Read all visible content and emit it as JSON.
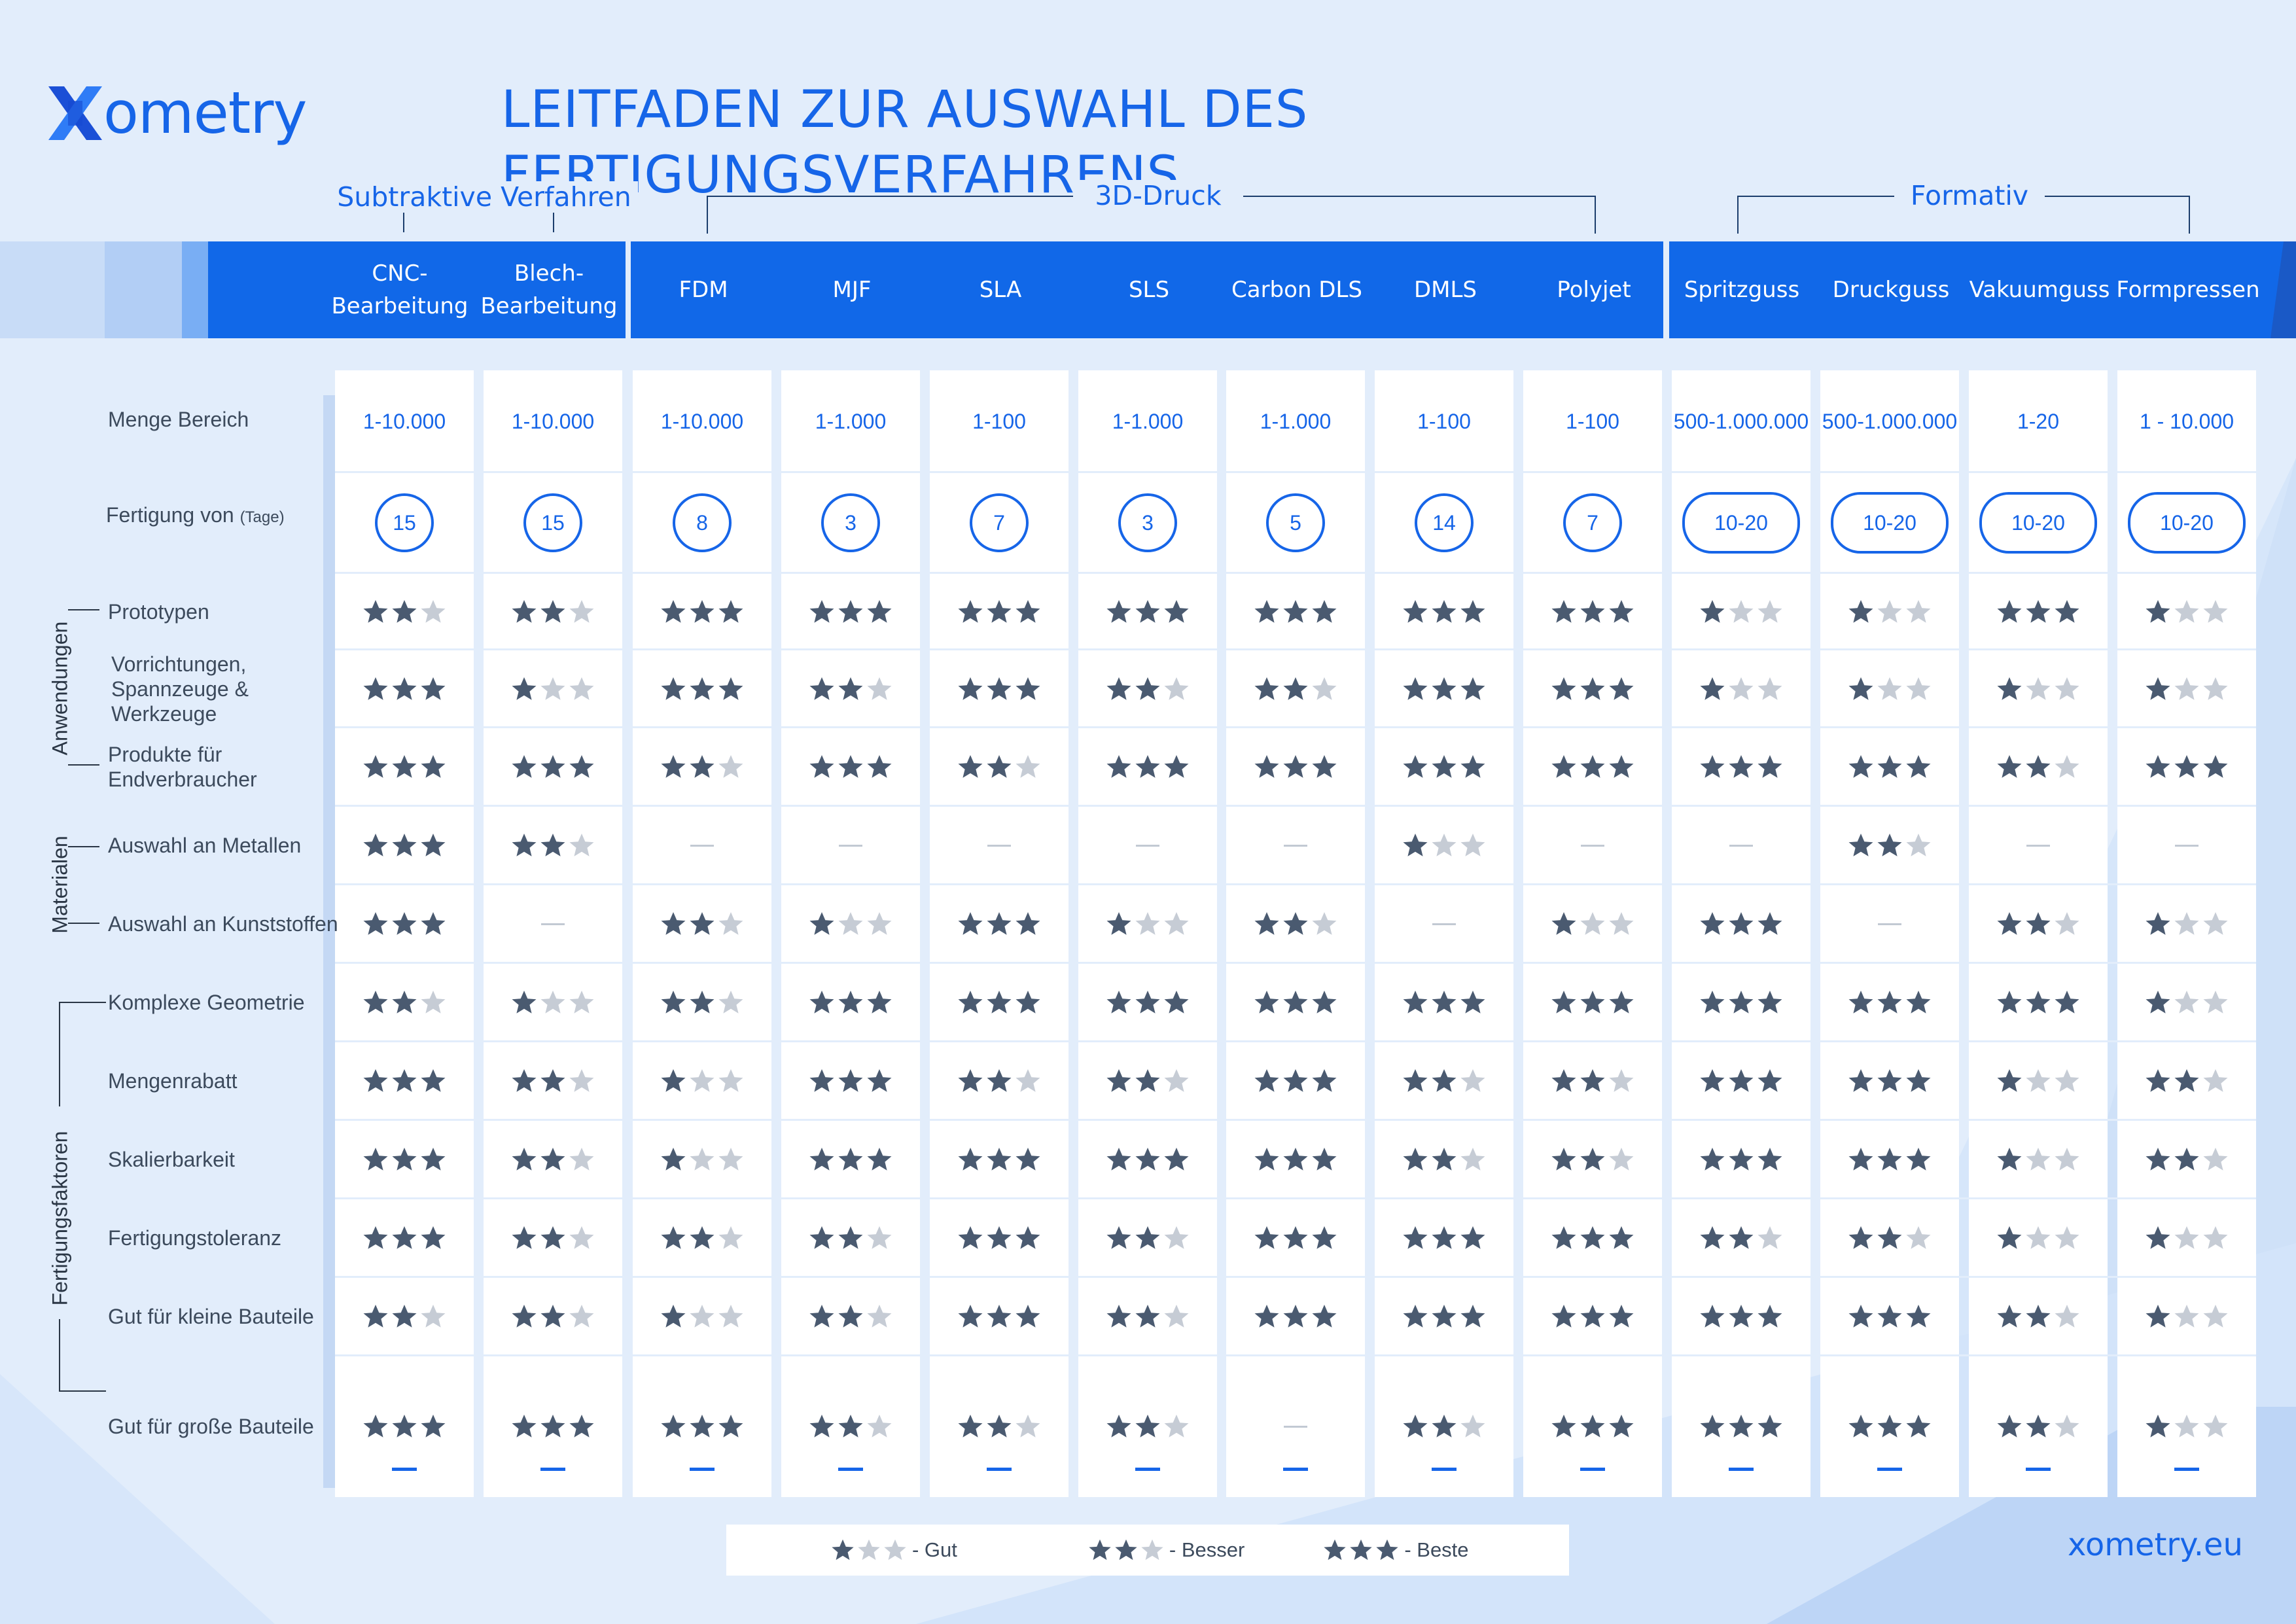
{
  "brand": {
    "logo_text": "ometry",
    "website": "xometry.eu",
    "primary_color": "#1665e8",
    "band_color": "#1168e8",
    "star_color": "#4a5a70",
    "star_empty_color": "#c6ccd5"
  },
  "title": "LEITFADEN ZUR AUSWAHL DES FERTIGUNGSVERFAHRENS",
  "groups": [
    {
      "label": "Subtraktive Verfahren",
      "span": [
        0,
        1
      ]
    },
    {
      "label": "3D-Druck",
      "span": [
        2,
        8
      ]
    },
    {
      "label": "Formativ",
      "span": [
        9,
        12
      ]
    }
  ],
  "processes": [
    {
      "name": "CNC-\nBearbeitung",
      "quantity": "1-10.000",
      "days": "15"
    },
    {
      "name": "Blech-\nBearbeitung",
      "quantity": "1-10.000",
      "days": "15"
    },
    {
      "name": "FDM",
      "quantity": "1-10.000",
      "days": "8"
    },
    {
      "name": "MJF",
      "quantity": "1-1.000",
      "days": "3"
    },
    {
      "name": "SLA",
      "quantity": "1-100",
      "days": "7"
    },
    {
      "name": "SLS",
      "quantity": "1-1.000",
      "days": "3"
    },
    {
      "name": "Carbon DLS",
      "quantity": "1-1.000",
      "days": "5"
    },
    {
      "name": "DMLS",
      "quantity": "1-100",
      "days": "14"
    },
    {
      "name": "Polyjet",
      "quantity": "1-100",
      "days": "7"
    },
    {
      "name": "Spritzguss",
      "quantity": "500-1.000.000",
      "days": "10-20"
    },
    {
      "name": "Druckguss",
      "quantity": "500-1.000.000",
      "days": "10-20"
    },
    {
      "name": "Vakuumguss",
      "quantity": "1-20",
      "days": "10-20"
    },
    {
      "name": "Formpressen",
      "quantity": "1 - 10.000",
      "days": "10-20"
    }
  ],
  "quantity_label": "Menge Bereich",
  "days_label": "Fertigung von",
  "days_unit": "(Tage)",
  "categories": [
    {
      "label": "Anwendungen",
      "rows": [
        0,
        2
      ]
    },
    {
      "label": "Materialen",
      "rows": [
        3,
        4
      ]
    },
    {
      "label": "Fertigungsfaktoren",
      "rows": [
        5,
        10
      ]
    }
  ],
  "rating_rows": [
    {
      "label": "Prototypen",
      "ratings": [
        2,
        2,
        3,
        3,
        3,
        3,
        3,
        3,
        3,
        1,
        1,
        3,
        1
      ]
    },
    {
      "label": "Vorrichtungen,\nSpannzeuge &\nWerkzeuge",
      "ratings": [
        3,
        1,
        3,
        2,
        3,
        2,
        2,
        3,
        3,
        1,
        1,
        1,
        1
      ]
    },
    {
      "label": "Produkte für\nEndverbraucher",
      "ratings": [
        3,
        3,
        2,
        3,
        2,
        3,
        3,
        3,
        3,
        3,
        3,
        2,
        3
      ]
    },
    {
      "label": "Auswahl an Metallen",
      "ratings": [
        3,
        2,
        0,
        0,
        0,
        0,
        0,
        1,
        0,
        0,
        2,
        0,
        0
      ]
    },
    {
      "label": "Auswahl an Kunststoffen",
      "ratings": [
        3,
        0,
        2,
        1,
        3,
        1,
        2,
        0,
        1,
        3,
        0,
        2,
        1
      ]
    },
    {
      "label": "Komplexe Geometrie",
      "ratings": [
        2,
        1,
        2,
        3,
        3,
        3,
        3,
        3,
        3,
        3,
        3,
        3,
        1
      ]
    },
    {
      "label": "Mengenrabatt",
      "ratings": [
        3,
        2,
        1,
        3,
        2,
        2,
        3,
        2,
        2,
        3,
        3,
        1,
        2
      ]
    },
    {
      "label": "Skalierbarkeit",
      "ratings": [
        3,
        2,
        1,
        3,
        3,
        3,
        3,
        2,
        2,
        3,
        3,
        1,
        2
      ]
    },
    {
      "label": "Fertigungstoleranz",
      "ratings": [
        3,
        2,
        2,
        2,
        3,
        2,
        3,
        3,
        3,
        2,
        2,
        1,
        1
      ]
    },
    {
      "label": "Gut für kleine Bauteile",
      "ratings": [
        2,
        2,
        1,
        2,
        3,
        2,
        3,
        3,
        3,
        3,
        3,
        2,
        1
      ]
    },
    {
      "label": "Gut für große Bauteile",
      "ratings": [
        3,
        3,
        3,
        2,
        2,
        2,
        0,
        2,
        3,
        3,
        3,
        2,
        1
      ]
    }
  ],
  "legend": [
    {
      "stars": 1,
      "label": "- Gut"
    },
    {
      "stars": 2,
      "label": "- Besser"
    },
    {
      "stars": 3,
      "label": "- Beste"
    }
  ]
}
